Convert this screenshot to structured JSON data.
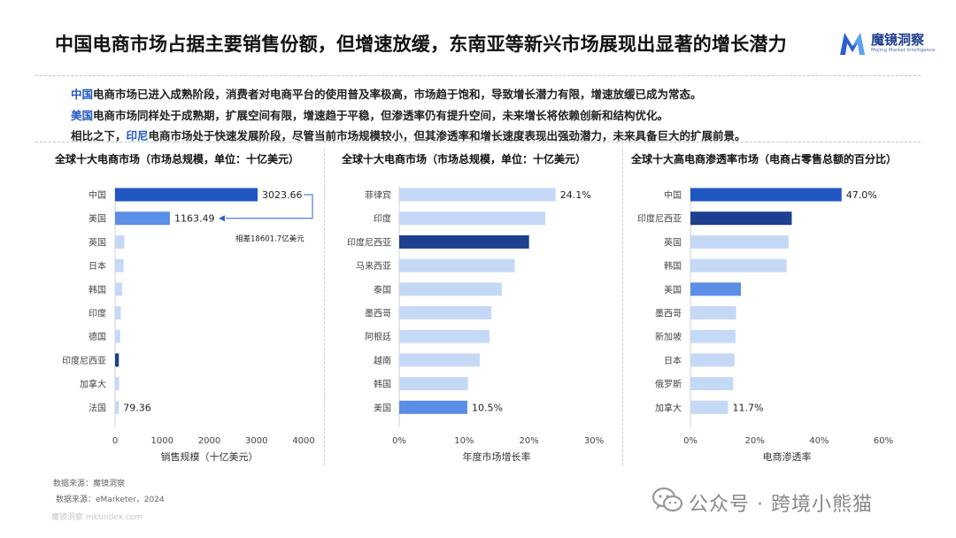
{
  "title": "中国电商市场占据主要销售份额，但增速放缓，东南亚等新兴市场展现出显著的增长潜力",
  "logo": {
    "name": "魔镜洞察",
    "sub": "Mojing Market Intelligence"
  },
  "summary": {
    "line1": {
      "hl": "中国",
      "text": "电商市场已进入成熟阶段，消费者对电商平台的使用普及率极高，市场趋于饱和，导致增长潜力有限，增速放缓已成为常态。"
    },
    "line2": {
      "hl": "美国",
      "text": "电商市场同样处于成熟期，扩展空间有限，增速趋于平稳，但渗透率仍有提升空间，未来增长将依赖创新和结构优化。"
    },
    "line3": {
      "pre": "相比之下，",
      "hl": "印尼",
      "text": "电商市场处于快速发展阶段，尽管当前市场规模较小，但其渗透率和增长速度表现出强劲潜力，未来具备巨大的扩展前景。"
    }
  },
  "colors": {
    "primary": "#1f56c2",
    "dark": "#1c3f8f",
    "mid": "#5b8ee6",
    "light": "#c5d9f7"
  },
  "chart_data": [
    {
      "type": "bar",
      "orientation": "horizontal",
      "title": "全球十大电商市场（市场总规模，单位：十亿美元）",
      "xlabel": "销售规模（十亿美元）",
      "xlim": [
        0,
        4000
      ],
      "ticks": [
        "0",
        "1000",
        "2000",
        "3000",
        "4000"
      ],
      "tick_values": [
        0,
        1000,
        2000,
        3000,
        4000
      ],
      "categories": [
        "中国",
        "美国",
        "英国",
        "日本",
        "韩国",
        "印度",
        "德国",
        "印度尼西亚",
        "加拿大",
        "法国"
      ],
      "values": [
        3023.66,
        1163.49,
        195,
        180,
        150,
        120,
        110,
        80,
        85,
        79.36
      ],
      "colors": [
        "primary",
        "mid",
        "light",
        "light",
        "light",
        "light",
        "light",
        "dark",
        "light",
        "light"
      ],
      "data_labels": {
        "0": "3023.66",
        "1": "1163.49",
        "9": "79.36"
      },
      "annotation": "相差18601.7亿美元"
    },
    {
      "type": "bar",
      "orientation": "horizontal",
      "title": "全球十大电商市场（市场总规模，单位：十亿美元）",
      "xlabel": "年度市场增长率",
      "xlim": [
        0,
        30
      ],
      "ticks": [
        "0%",
        "10%",
        "20%",
        "30%"
      ],
      "tick_values": [
        0,
        10,
        20,
        30
      ],
      "categories": [
        "菲律宾",
        "印度",
        "印度尼西亚",
        "马来西亚",
        "泰国",
        "墨西哥",
        "阿根廷",
        "越南",
        "韩国",
        "美国"
      ],
      "values": [
        24.1,
        22.5,
        20.0,
        17.8,
        15.8,
        14.2,
        13.9,
        12.4,
        10.6,
        10.5
      ],
      "colors": [
        "light",
        "light",
        "dark",
        "light",
        "light",
        "light",
        "light",
        "light",
        "light",
        "mid"
      ],
      "data_labels": {
        "0": "24.1%",
        "9": "10.5%"
      }
    },
    {
      "type": "bar",
      "orientation": "horizontal",
      "title": "全球十大高电商渗透率市场（电商占零售总额的百分比）",
      "xlabel": "电商渗透率",
      "xlim": [
        0,
        60
      ],
      "ticks": [
        "0%",
        "20%",
        "40%",
        "60%"
      ],
      "tick_values": [
        0,
        20,
        40,
        60
      ],
      "categories": [
        "中国",
        "印度尼西亚",
        "英国",
        "韩国",
        "美国",
        "墨西哥",
        "新加坡",
        "日本",
        "俄罗斯",
        "加拿大"
      ],
      "values": [
        47.0,
        31.5,
        30.5,
        29.9,
        15.7,
        14.2,
        14.0,
        13.7,
        13.3,
        11.7
      ],
      "colors": [
        "primary",
        "dark",
        "light",
        "light",
        "mid",
        "light",
        "light",
        "light",
        "light",
        "light"
      ],
      "data_labels": {
        "0": "47.0%",
        "9": "11.7%"
      }
    }
  ],
  "sources": {
    "source1": "数据来源：魔镜洞察",
    "source2": "数据来源：eMarketer，2024"
  },
  "watermark": "魔镜洞察 mktindex.com",
  "wechat": {
    "text": "公众号 · 跨境小熊猫",
    "icon": "wechat-icon"
  }
}
